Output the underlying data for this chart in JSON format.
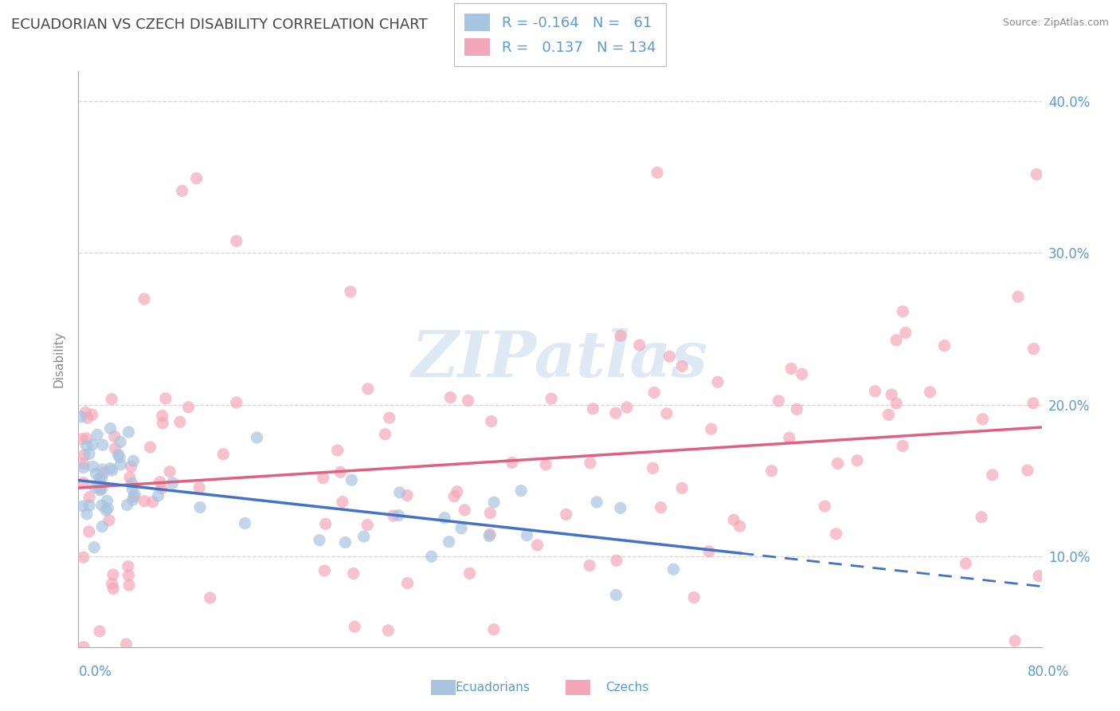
{
  "title": "ECUADORIAN VS CZECH DISABILITY CORRELATION CHART",
  "source": "Source: ZipAtlas.com",
  "ylabel": "Disability",
  "legend_entries": [
    {
      "label": "Ecuadorians",
      "color": "#a8c4e0",
      "R": -0.164,
      "N": 61
    },
    {
      "label": "Czechs",
      "color": "#f4a7b9",
      "R": 0.137,
      "N": 134
    }
  ],
  "x_min": 0.0,
  "x_max": 80.0,
  "y_min": 4.0,
  "y_max": 42.0,
  "y_ticks": [
    10.0,
    20.0,
    30.0,
    40.0
  ],
  "background_color": "#ffffff",
  "grid_color": "#cccccc",
  "title_color": "#444444",
  "axis_label_color": "#5b9bd5",
  "scatter_blue_color": "#a8c4e0",
  "scatter_pink_color": "#f4a7b9",
  "line_blue_color": "#4472c4",
  "line_pink_color": "#e06080",
  "watermark_text": "ZIPatlas",
  "blue_line_x0": 0.0,
  "blue_line_y0": 15.0,
  "blue_line_x1": 80.0,
  "blue_line_y1": 8.0,
  "blue_solid_end": 55.0,
  "pink_line_x0": 0.0,
  "pink_line_y0": 14.5,
  "pink_line_x1": 80.0,
  "pink_line_y1": 18.5
}
